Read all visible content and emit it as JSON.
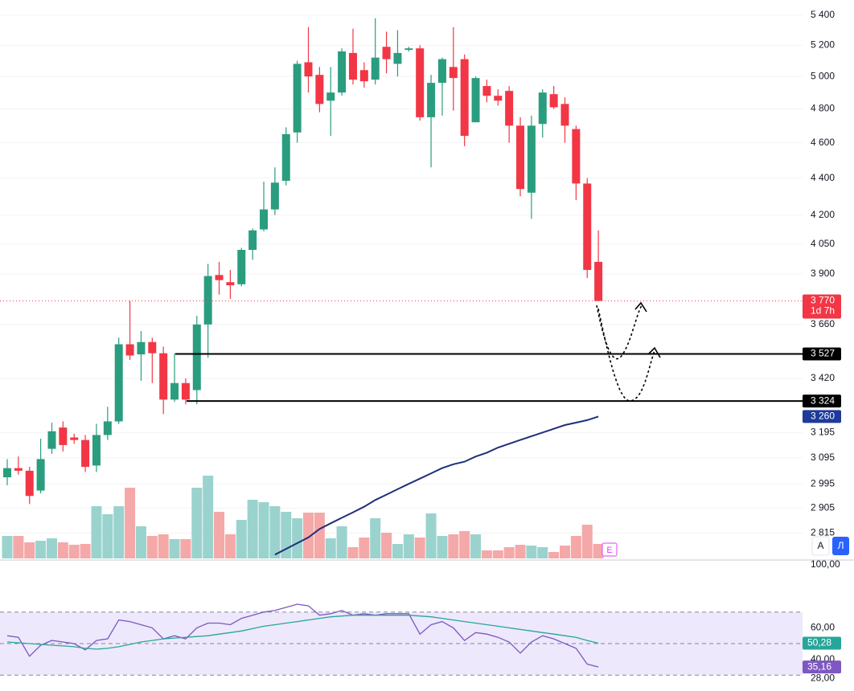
{
  "chart_data": [
    {
      "type": "candlestick",
      "log": true,
      "grid": true,
      "ylim": [
        2727,
        5477
      ],
      "yticks": [
        {
          "value": 5400,
          "label": "5 400"
        },
        {
          "value": 5200,
          "label": "5 200"
        },
        {
          "value": 5000,
          "label": "5 000"
        },
        {
          "value": 4800,
          "label": "4 800"
        },
        {
          "value": 4600,
          "label": "4 600"
        },
        {
          "value": 4400,
          "label": "4 400"
        },
        {
          "value": 4200,
          "label": "4 200"
        },
        {
          "value": 4050,
          "label": "4 050"
        },
        {
          "value": 3900,
          "label": "3 900"
        },
        {
          "value": 3660,
          "label": "3 660"
        },
        {
          "value": 3420,
          "label": "3 420"
        },
        {
          "value": 3195,
          "label": "3 195"
        },
        {
          "value": 3095,
          "label": "3 095"
        },
        {
          "value": 2995,
          "label": "2 995"
        },
        {
          "value": 2905,
          "label": "2 905"
        },
        {
          "value": 2815,
          "label": "2 815"
        }
      ],
      "up_color": "#2a9d7f",
      "down_color": "#f23645",
      "open": [
        3020,
        3055,
        3045,
        2970,
        3130,
        3215,
        3175,
        3165,
        3065,
        3185,
        3240,
        3570,
        3525,
        3580,
        3530,
        3330,
        3400,
        3370,
        3660,
        3895,
        3860,
        3850,
        4020,
        4125,
        4230,
        4385,
        4660,
        5090,
        5010,
        4850,
        4900,
        5150,
        5040,
        4980,
        5190,
        5080,
        5170,
        5180,
        4750,
        4960,
        5060,
        5110,
        4720,
        4940,
        4880,
        4910,
        4700,
        4320,
        4710,
        4890,
        4830,
        4680,
        4370,
        3960
      ],
      "high": [
        3090,
        3100,
        3060,
        3170,
        3235,
        3240,
        3190,
        3185,
        3230,
        3300,
        3600,
        3770,
        3630,
        3600,
        3560,
        3530,
        3420,
        3700,
        3950,
        3960,
        3920,
        4030,
        4130,
        4380,
        4460,
        4690,
        5100,
        5320,
        5060,
        5060,
        5180,
        5310,
        5090,
        5380,
        5290,
        5300,
        5190,
        5200,
        5010,
        5120,
        5320,
        5140,
        5000,
        4980,
        4920,
        4940,
        4750,
        4760,
        4920,
        4940,
        4870,
        4700,
        4400,
        4120
      ],
      "low": [
        2990,
        3030,
        2920,
        2960,
        3110,
        3120,
        3150,
        3040,
        3040,
        3165,
        3230,
        3500,
        3410,
        3400,
        3270,
        3320,
        3310,
        3310,
        3510,
        3800,
        3780,
        3840,
        3970,
        4115,
        4200,
        4360,
        4600,
        4900,
        4780,
        4640,
        4880,
        4950,
        4930,
        4950,
        5020,
        5000,
        5160,
        4730,
        4460,
        4760,
        4790,
        4580,
        4720,
        4840,
        4820,
        4600,
        4300,
        4180,
        4630,
        4800,
        4600,
        4280,
        3880,
        3770
      ],
      "close": [
        3055,
        3045,
        2950,
        3090,
        3200,
        3145,
        3165,
        3060,
        3185,
        3240,
        3570,
        3520,
        3580,
        3530,
        3330,
        3400,
        3330,
        3660,
        3890,
        3870,
        3845,
        4020,
        4120,
        4230,
        4375,
        4650,
        5080,
        5000,
        4830,
        4900,
        5160,
        4980,
        4970,
        5120,
        5110,
        5150,
        5180,
        4750,
        4960,
        5110,
        4990,
        4640,
        4990,
        4880,
        4850,
        4700,
        4340,
        4700,
        4900,
        4810,
        4700,
        4370,
        3920,
        3770
      ],
      "volume": {
        "ylim": [
          0,
          110
        ],
        "up_color": "#9ad3cd",
        "down_color": "#f5a8a8",
        "values": [
          28,
          28,
          20,
          22,
          25,
          20,
          17,
          18,
          65,
          55,
          65,
          88,
          40,
          28,
          30,
          24,
          24,
          88,
          103,
          58,
          30,
          48,
          73,
          70,
          65,
          58,
          50,
          57,
          57,
          25,
          40,
          14,
          26,
          50,
          32,
          18,
          30,
          26,
          56,
          28,
          30,
          34,
          30,
          10,
          10,
          14,
          17,
          16,
          14,
          8,
          16,
          28,
          42,
          18
        ]
      },
      "ma": {
        "color": "#1f2f7a",
        "label_color": "#1e3a9a",
        "last_label": "3 260",
        "values": [
          null,
          null,
          null,
          null,
          null,
          null,
          null,
          null,
          null,
          null,
          null,
          null,
          null,
          null,
          null,
          null,
          null,
          null,
          null,
          null,
          null,
          null,
          null,
          null,
          2740,
          2760,
          2780,
          2800,
          2830,
          2850,
          2870,
          2890,
          2910,
          2935,
          2955,
          2975,
          2995,
          3015,
          3035,
          3055,
          3070,
          3080,
          3100,
          3115,
          3135,
          3150,
          3165,
          3180,
          3195,
          3210,
          3225,
          3235,
          3245,
          3260
        ]
      },
      "last_price": {
        "value": 3770,
        "label": "3 770",
        "countdown": "1d 7h",
        "color": "#f23645"
      },
      "levels": [
        {
          "value": 3527,
          "label": "3 527"
        },
        {
          "value": 3324,
          "label": "3 324"
        }
      ],
      "annotation": "E"
    },
    {
      "type": "line",
      "ylim": [
        25,
        100
      ],
      "yticks": [
        {
          "value": 100,
          "label": "100,00"
        },
        {
          "value": 60,
          "label": "60,00"
        },
        {
          "value": 40,
          "label": "40,00"
        },
        {
          "value": 28,
          "label": "28,00"
        }
      ],
      "band": [
        30,
        70
      ],
      "midline": 50,
      "band_color": "#ede8fb",
      "series": [
        {
          "color": "#7e57c2",
          "last_label": "35,16",
          "values": [
            55,
            54,
            42,
            49,
            52,
            51,
            50,
            46,
            52,
            53,
            65,
            64,
            62,
            60,
            53,
            55,
            53,
            60,
            63,
            63,
            62,
            66,
            68,
            70,
            71,
            73,
            75,
            74,
            68,
            69,
            71,
            68,
            69,
            68,
            69,
            69,
            69,
            56,
            62,
            64,
            60,
            52,
            57,
            56,
            54,
            51,
            44,
            51,
            55,
            53,
            50,
            47,
            37,
            35.16
          ]
        },
        {
          "color": "#26a69a",
          "last_label": "50,28",
          "values": [
            51,
            50.5,
            50,
            49.5,
            49,
            48.5,
            48,
            47,
            46.5,
            47,
            48,
            49.5,
            51,
            52,
            53,
            53.5,
            54,
            54.5,
            55,
            56,
            57,
            58,
            59.5,
            61,
            62,
            63,
            64,
            65,
            66,
            67,
            67.5,
            68,
            68,
            68,
            68,
            68,
            68,
            67.5,
            67,
            66,
            65,
            64,
            63,
            62,
            61,
            60,
            59,
            58,
            57,
            56,
            55,
            54,
            52,
            50.28
          ]
        }
      ]
    }
  ],
  "controls": {
    "auto": "A",
    "log": "Л"
  }
}
